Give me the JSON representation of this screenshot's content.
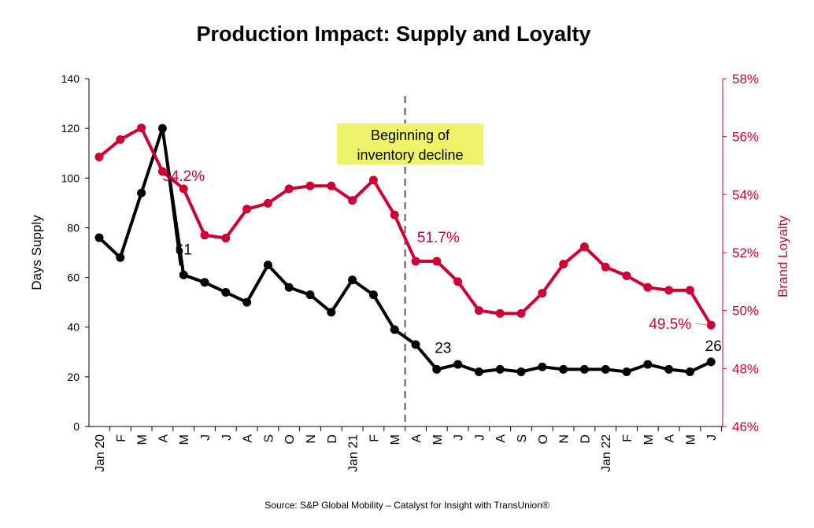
{
  "chart_data": {
    "type": "line",
    "title": "Production Impact: Supply and Loyalty",
    "source": "Source: S&P Global Mobility – Catalyst for Insight with TransUnion®",
    "x_ticks": [
      "Jan 20",
      "F",
      "M",
      "A",
      "M",
      "J",
      "J",
      "A",
      "S",
      "O",
      "N",
      "D",
      "Jan 21",
      "F",
      "M",
      "A",
      "M",
      "J",
      "J",
      "A",
      "S",
      "O",
      "N",
      "D",
      "Jan 22",
      "F",
      "M",
      "A",
      "M",
      "J"
    ],
    "y_left": {
      "label": "Days Supply",
      "min": 0,
      "max": 140,
      "ticks": [
        "0",
        "20",
        "40",
        "60",
        "80",
        "100",
        "120",
        "140"
      ]
    },
    "y_right": {
      "label": "Brand Loyalty",
      "min": 46,
      "max": 58,
      "ticks": [
        "46%",
        "48%",
        "50%",
        "52%",
        "54%",
        "56%",
        "58%"
      ]
    },
    "series": [
      {
        "name": "Days Supply",
        "axis": "left",
        "color": "#000000",
        "values": [
          76,
          68,
          94,
          120,
          61,
          58,
          54,
          50,
          65,
          56,
          53,
          46,
          59,
          53,
          39,
          33,
          23,
          25,
          22,
          23,
          22,
          24,
          23,
          23,
          23,
          22,
          25,
          23,
          22,
          26
        ]
      },
      {
        "name": "Brand Loyalty",
        "axis": "right",
        "color": "#cc0033",
        "values": [
          55.3,
          55.9,
          56.3,
          54.8,
          54.2,
          52.6,
          52.5,
          53.5,
          53.7,
          54.2,
          54.3,
          54.3,
          53.8,
          54.5,
          53.3,
          51.7,
          51.7,
          51.0,
          50.0,
          49.9,
          49.9,
          50.6,
          51.6,
          52.2,
          51.5,
          51.2,
          50.8,
          50.7,
          50.7,
          49.5
        ]
      }
    ],
    "data_labels": [
      {
        "series": "Days Supply",
        "index": 4,
        "text": "61"
      },
      {
        "series": "Days Supply",
        "index": 16,
        "text": "23"
      },
      {
        "series": "Days Supply",
        "index": 29,
        "text": "26"
      },
      {
        "series": "Brand Loyalty",
        "index": 4,
        "text": "54.2%"
      },
      {
        "series": "Brand Loyalty",
        "index": 16,
        "text": "51.7%"
      },
      {
        "series": "Brand Loyalty",
        "index": 29,
        "text": "49.5%"
      }
    ],
    "annotation": {
      "line1": "Beginning of",
      "line2": "inventory decline",
      "marker_between": [
        "M",
        "A"
      ],
      "box_color": "#eef36a"
    },
    "grid": false
  }
}
